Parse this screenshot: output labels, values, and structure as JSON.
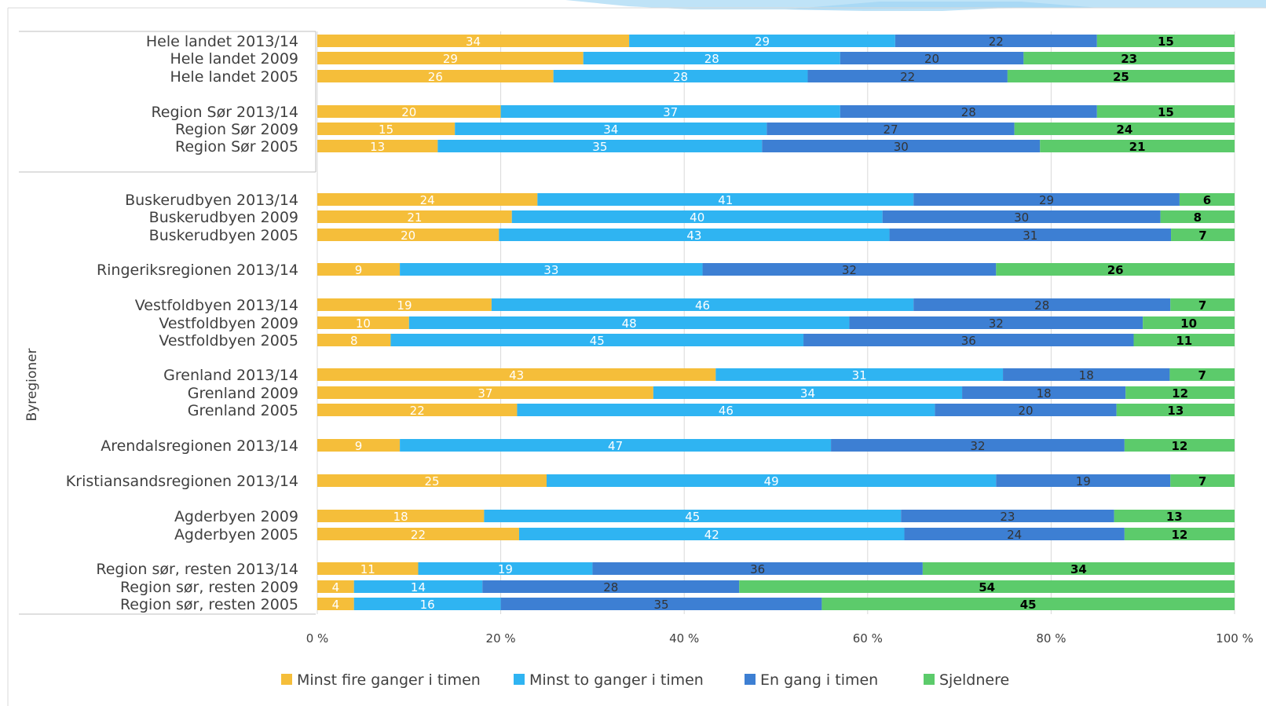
{
  "chart_data": {
    "type": "bar",
    "orientation": "horizontal",
    "stacked": true,
    "y_axis_group_label": "Byregioner",
    "xlim": [
      0,
      100
    ],
    "x_ticks": [
      "0 %",
      "20 %",
      "40 %",
      "60 %",
      "80 %",
      "100 %"
    ],
    "grid": true,
    "legend_position": "bottom",
    "series": [
      {
        "name": "Minst fire ganger i timen",
        "color": "#F5BE3A",
        "label_color": "#ffffff"
      },
      {
        "name": "Minst to ganger i timen",
        "color": "#2FB4F2",
        "label_color": "#ffffff"
      },
      {
        "name": "En gang i timen",
        "color": "#3D7FD3",
        "label_color": "#333333"
      },
      {
        "name": "Sjeldnere",
        "color": "#5CCB6B",
        "label_color": "#000000"
      }
    ],
    "rows": [
      {
        "label": "Hele landet 2013/14",
        "values": [
          34,
          29,
          22,
          15
        ]
      },
      {
        "label": "Hele landet 2009",
        "values": [
          29,
          28,
          20,
          23
        ]
      },
      {
        "label": "Hele landet 2005",
        "values": [
          26,
          28,
          22,
          25
        ]
      },
      {
        "label": "Region Sør 2013/14",
        "values": [
          20,
          37,
          28,
          15
        ]
      },
      {
        "label": "Region Sør 2009",
        "values": [
          15,
          34,
          27,
          24
        ]
      },
      {
        "label": "Region Sør 2005",
        "values": [
          13,
          35,
          30,
          21
        ]
      },
      {
        "label": "Buskerudbyen 2013/14",
        "values": [
          24,
          41,
          29,
          6
        ]
      },
      {
        "label": "Buskerudbyen 2009",
        "values": [
          21,
          40,
          30,
          8
        ]
      },
      {
        "label": "Buskerudbyen 2005",
        "values": [
          20,
          43,
          31,
          7
        ]
      },
      {
        "label": "Ringeriksregionen 2013/14",
        "values": [
          9,
          33,
          32,
          26
        ]
      },
      {
        "label": "Vestfoldbyen 2013/14",
        "values": [
          19,
          46,
          28,
          7
        ]
      },
      {
        "label": "Vestfoldbyen 2009",
        "values": [
          10,
          48,
          32,
          10
        ]
      },
      {
        "label": "Vestfoldbyen 2005",
        "values": [
          8,
          45,
          36,
          11
        ]
      },
      {
        "label": "Grenland 2013/14",
        "values": [
          43,
          31,
          18,
          7
        ]
      },
      {
        "label": "Grenland 2009",
        "values": [
          37,
          34,
          18,
          12
        ]
      },
      {
        "label": "Grenland 2005",
        "values": [
          22,
          46,
          20,
          13
        ]
      },
      {
        "label": "Arendalsregionen 2013/14",
        "values": [
          9,
          47,
          32,
          12
        ]
      },
      {
        "label": "Kristiansandsregionen 2013/14",
        "values": [
          25,
          49,
          19,
          7
        ]
      },
      {
        "label": "Agderbyen 2009",
        "values": [
          18,
          45,
          23,
          13
        ]
      },
      {
        "label": "Agderbyen 2005",
        "values": [
          22,
          42,
          24,
          12
        ]
      },
      {
        "label": "Region sør, resten 2013/14",
        "values": [
          11,
          19,
          36,
          34
        ]
      },
      {
        "label": "Region sør, resten 2009",
        "values": [
          4,
          14,
          28,
          54
        ]
      },
      {
        "label": "Region sør, resten 2005",
        "values": [
          4,
          16,
          35,
          45
        ]
      }
    ]
  }
}
